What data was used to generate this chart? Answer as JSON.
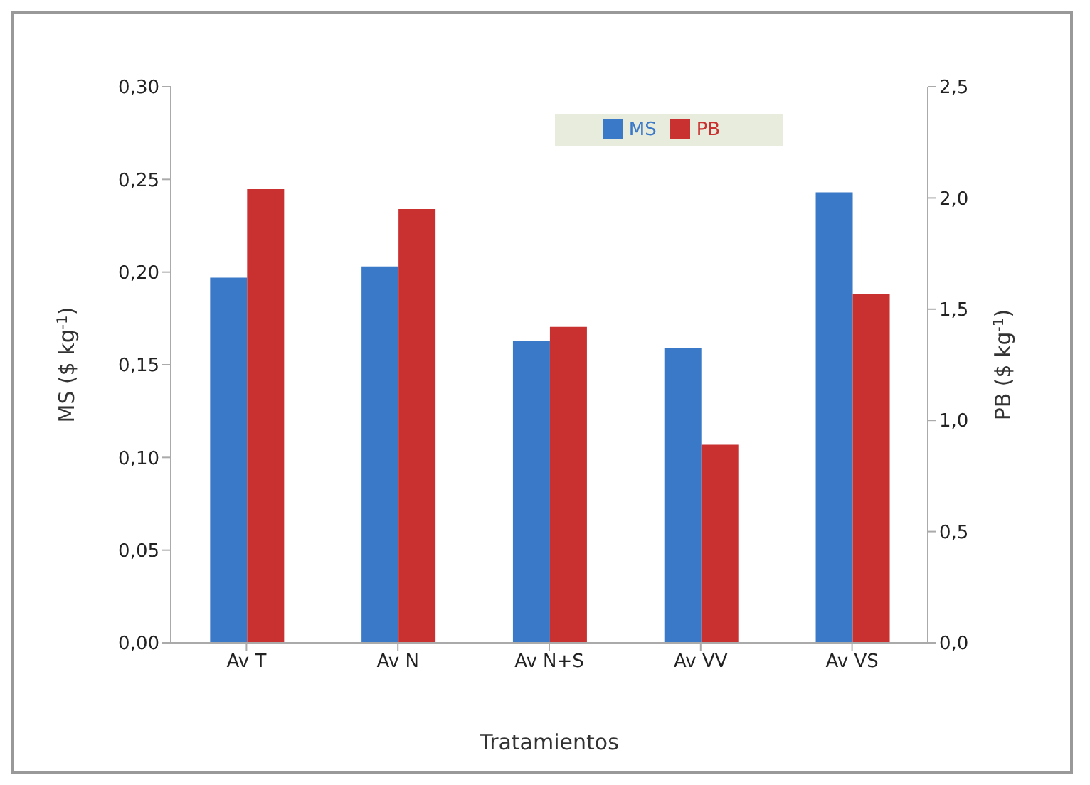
{
  "chart_data": {
    "type": "bar",
    "xlabel": "Tratamientos",
    "ylabel": "MS ($ kg$^{-1}$)",
    "y2label": "PB ($ kg$^{-1}$)",
    "categories": [
      "Av T",
      "Av N",
      "Av N+S",
      "Av VV",
      "Av VS"
    ],
    "series": [
      {
        "name": "MS",
        "color": "#3a78c8",
        "values": [
          0.197,
          0.203,
          0.163,
          0.159,
          0.243
        ]
      },
      {
        "name": "PB",
        "color": "#c8312f",
        "axis": "y2",
        "values": [
          2.04,
          1.95,
          1.42,
          0.89,
          1.57
        ]
      }
    ],
    "ylim": [
      0,
      0.3
    ],
    "yticks": [
      {
        "value": 0,
        "label": "0,00"
      },
      {
        "value": 0.05,
        "label": "0,05"
      },
      {
        "value": 0.1,
        "label": "0,10"
      },
      {
        "value": 0.15,
        "label": "0,15"
      },
      {
        "value": 0.2,
        "label": "0,20"
      },
      {
        "value": 0.25,
        "label": "0,25"
      },
      {
        "value": 0.3,
        "label": "0,30"
      }
    ],
    "y2lim": [
      0,
      2.5
    ],
    "y2ticks": [
      {
        "value": 0,
        "label": "0,0"
      },
      {
        "value": 0.5,
        "label": "0,5"
      },
      {
        "value": 1,
        "label": "1,0"
      },
      {
        "value": 1.5,
        "label": "1,5"
      },
      {
        "value": 2,
        "label": "2,0"
      },
      {
        "value": 2.5,
        "label": "2,5"
      }
    ],
    "grid": false,
    "legend": "top"
  }
}
